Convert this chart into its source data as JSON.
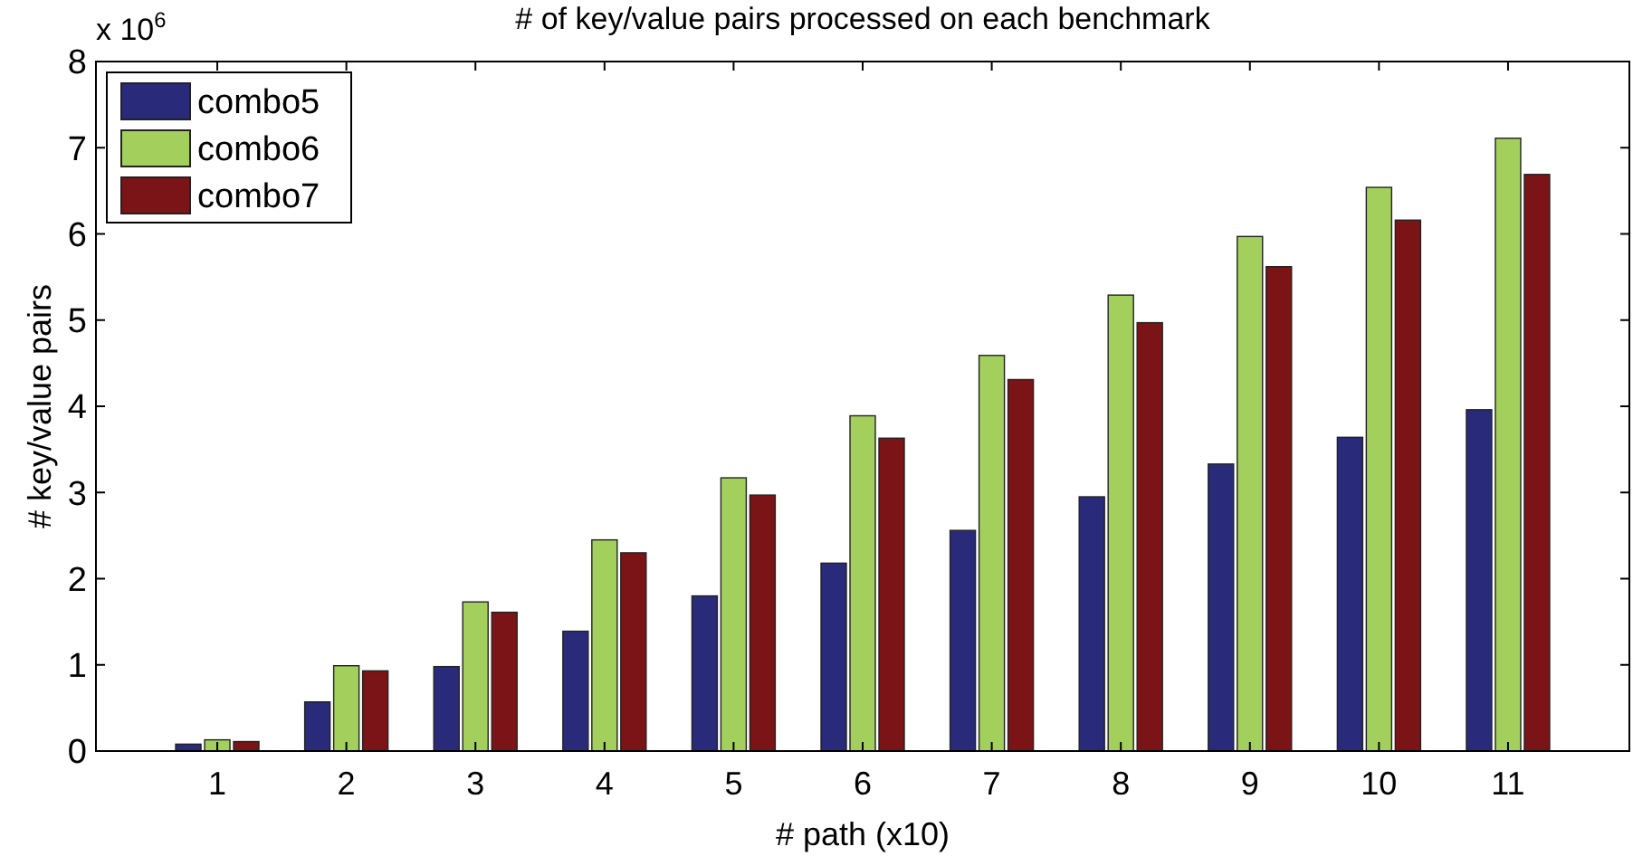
{
  "chart_data": {
    "type": "bar",
    "title": "# of key/value pairs processed on each benchmark",
    "xlabel": "# path (x10)",
    "ylabel": "# key/value pairs",
    "annotations": [
      "x 10$^{6}$"
    ],
    "categories": [
      "1",
      "2",
      "3",
      "4",
      "5",
      "6",
      "7",
      "8",
      "9",
      "10",
      "11"
    ],
    "series": [
      {
        "name": "combo5",
        "color": "#2a2a7a",
        "values": [
          0.08,
          0.57,
          0.98,
          1.39,
          1.8,
          2.18,
          2.56,
          2.95,
          3.33,
          3.64,
          3.96
        ]
      },
      {
        "name": "combo6",
        "color": "#a3d05c",
        "values": [
          0.13,
          0.99,
          1.73,
          2.45,
          3.17,
          3.89,
          4.59,
          5.29,
          5.97,
          6.54,
          7.11
        ]
      },
      {
        "name": "combo7",
        "color": "#7b1416",
        "values": [
          0.11,
          0.93,
          1.61,
          2.3,
          2.97,
          3.63,
          4.31,
          4.97,
          5.62,
          6.16,
          6.69
        ]
      }
    ],
    "ylim": [
      0,
      8
    ],
    "yticks": [
      0,
      1,
      2,
      3,
      4,
      5,
      6,
      7,
      8
    ],
    "grid": false,
    "legend": "top left"
  }
}
